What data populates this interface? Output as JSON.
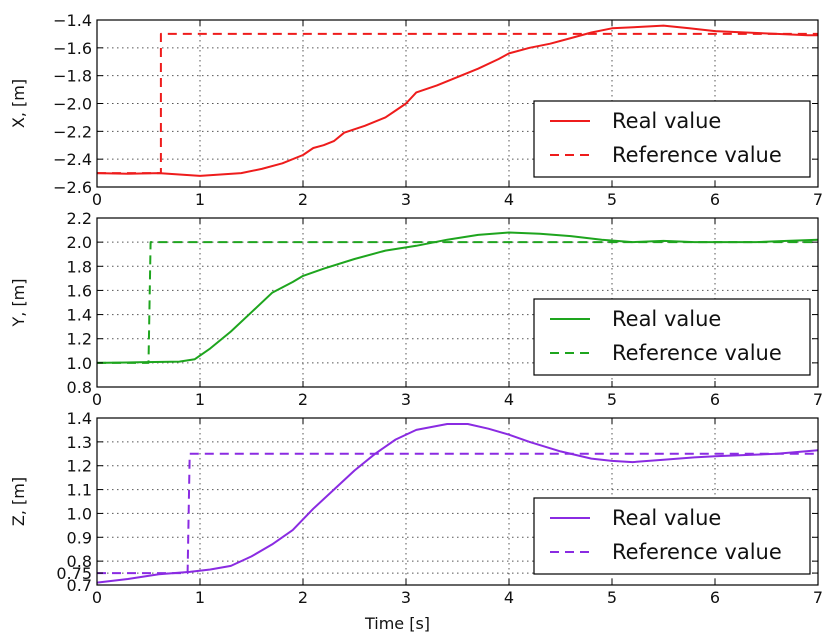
{
  "chart_data": [
    {
      "type": "line",
      "ylabel": "X, [m]",
      "xlabel": "",
      "xlim": [
        0,
        7
      ],
      "ylim": [
        -2.6,
        -1.4
      ],
      "x_ticks": [
        "0",
        "1",
        "2",
        "3",
        "4",
        "5",
        "6",
        "7"
      ],
      "y_ticks": [
        "-1.4",
        "-1.6",
        "-1.8",
        "-2.0",
        "-2.2",
        "-2.4",
        "-2.6"
      ],
      "grid": true,
      "legend": "bottom-right",
      "color": "#ee1c1c",
      "series": [
        {
          "name": "Real value",
          "style": "solid",
          "points": [
            [
              0,
              -2.5
            ],
            [
              0.3,
              -2.505
            ],
            [
              0.6,
              -2.5
            ],
            [
              0.8,
              -2.51
            ],
            [
              1.0,
              -2.52
            ],
            [
              1.2,
              -2.51
            ],
            [
              1.4,
              -2.5
            ],
            [
              1.6,
              -2.47
            ],
            [
              1.8,
              -2.43
            ],
            [
              2.0,
              -2.37
            ],
            [
              2.1,
              -2.32
            ],
            [
              2.2,
              -2.3
            ],
            [
              2.3,
              -2.27
            ],
            [
              2.4,
              -2.21
            ],
            [
              2.6,
              -2.16
            ],
            [
              2.8,
              -2.1
            ],
            [
              2.9,
              -2.05
            ],
            [
              3.0,
              -2.0
            ],
            [
              3.1,
              -1.92
            ],
            [
              3.3,
              -1.87
            ],
            [
              3.5,
              -1.81
            ],
            [
              3.7,
              -1.75
            ],
            [
              3.9,
              -1.68
            ],
            [
              4.0,
              -1.64
            ],
            [
              4.2,
              -1.6
            ],
            [
              4.4,
              -1.57
            ],
            [
              4.6,
              -1.53
            ],
            [
              4.8,
              -1.49
            ],
            [
              5.0,
              -1.46
            ],
            [
              5.25,
              -1.45
            ],
            [
              5.5,
              -1.44
            ],
            [
              5.75,
              -1.46
            ],
            [
              6.0,
              -1.48
            ],
            [
              6.3,
              -1.49
            ],
            [
              6.6,
              -1.5
            ],
            [
              6.9,
              -1.51
            ],
            [
              7.0,
              -1.51
            ]
          ]
        },
        {
          "name": "Reference value",
          "style": "dashed",
          "points": [
            [
              0,
              -2.5
            ],
            [
              0.62,
              -2.5
            ],
            [
              0.62,
              -1.5
            ],
            [
              7.0,
              -1.5
            ]
          ]
        }
      ]
    },
    {
      "type": "line",
      "ylabel": "Y, [m]",
      "xlabel": "",
      "xlim": [
        0,
        7
      ],
      "ylim": [
        0.8,
        2.2
      ],
      "x_ticks": [
        "0",
        "1",
        "2",
        "3",
        "4",
        "5",
        "6",
        "7"
      ],
      "y_ticks": [
        "2.2",
        "2.0",
        "1.8",
        "1.6",
        "1.4",
        "1.2",
        "1.0",
        "0.8"
      ],
      "grid": true,
      "legend": "bottom-right",
      "color": "#1ea51e",
      "series": [
        {
          "name": "Real value",
          "style": "solid",
          "points": [
            [
              0,
              1.0
            ],
            [
              0.4,
              1.005
            ],
            [
              0.8,
              1.01
            ],
            [
              0.95,
              1.03
            ],
            [
              1.1,
              1.12
            ],
            [
              1.3,
              1.26
            ],
            [
              1.5,
              1.42
            ],
            [
              1.7,
              1.58
            ],
            [
              1.9,
              1.67
            ],
            [
              2.0,
              1.72
            ],
            [
              2.2,
              1.78
            ],
            [
              2.5,
              1.86
            ],
            [
              2.8,
              1.93
            ],
            [
              3.1,
              1.97
            ],
            [
              3.4,
              2.02
            ],
            [
              3.7,
              2.06
            ],
            [
              4.0,
              2.08
            ],
            [
              4.3,
              2.07
            ],
            [
              4.6,
              2.05
            ],
            [
              4.9,
              2.02
            ],
            [
              5.2,
              2.0
            ],
            [
              5.5,
              2.01
            ],
            [
              5.8,
              2.0
            ],
            [
              6.1,
              2.0
            ],
            [
              6.4,
              2.0
            ],
            [
              6.7,
              2.01
            ],
            [
              7.0,
              2.02
            ]
          ]
        },
        {
          "name": "Reference value",
          "style": "dashed",
          "points": [
            [
              0,
              1.0
            ],
            [
              0.5,
              1.0
            ],
            [
              0.52,
              2.0
            ],
            [
              7.0,
              2.0
            ]
          ]
        }
      ]
    },
    {
      "type": "line",
      "ylabel": "Z, [m]",
      "xlabel": "Time  [s]",
      "xlim": [
        0,
        7
      ],
      "ylim": [
        0.7,
        1.4
      ],
      "x_ticks": [
        "0",
        "1",
        "2",
        "3",
        "4",
        "5",
        "6",
        "7"
      ],
      "y_ticks": [
        "1.4",
        "1.3",
        "1.2",
        "1.1",
        "1.0",
        "0.9",
        "0.8",
        "0.75",
        "0.7"
      ],
      "grid": true,
      "legend": "bottom-right",
      "color": "#8a2be2",
      "series": [
        {
          "name": "Real value",
          "style": "solid",
          "points": [
            [
              0,
              0.71
            ],
            [
              0.3,
              0.725
            ],
            [
              0.6,
              0.745
            ],
            [
              0.9,
              0.755
            ],
            [
              1.1,
              0.765
            ],
            [
              1.3,
              0.78
            ],
            [
              1.5,
              0.82
            ],
            [
              1.7,
              0.87
            ],
            [
              1.9,
              0.93
            ],
            [
              2.1,
              1.02
            ],
            [
              2.3,
              1.1
            ],
            [
              2.5,
              1.18
            ],
            [
              2.7,
              1.25
            ],
            [
              2.9,
              1.31
            ],
            [
              3.1,
              1.35
            ],
            [
              3.4,
              1.375
            ],
            [
              3.6,
              1.375
            ],
            [
              3.8,
              1.355
            ],
            [
              4.0,
              1.33
            ],
            [
              4.2,
              1.3
            ],
            [
              4.5,
              1.26
            ],
            [
              4.8,
              1.23
            ],
            [
              5.0,
              1.22
            ],
            [
              5.2,
              1.215
            ],
            [
              5.5,
              1.225
            ],
            [
              5.8,
              1.235
            ],
            [
              6.0,
              1.24
            ],
            [
              6.3,
              1.245
            ],
            [
              6.6,
              1.25
            ],
            [
              7.0,
              1.265
            ]
          ]
        },
        {
          "name": "Reference value",
          "style": "dashed",
          "points": [
            [
              0,
              0.75
            ],
            [
              0.88,
              0.75
            ],
            [
              0.9,
              1.25
            ],
            [
              7.0,
              1.25
            ]
          ]
        }
      ]
    }
  ]
}
